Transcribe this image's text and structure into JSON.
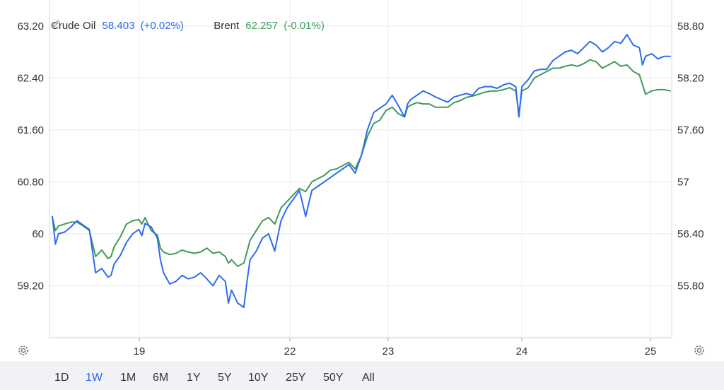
{
  "legend": {
    "series": [
      {
        "name": "Crude Oil",
        "value": "58.403",
        "change": "(+0.02%)",
        "color": "#2f6bf0"
      },
      {
        "name": "Brent",
        "value": "62.257",
        "change": "(-0.01%)",
        "color": "#3f9a5a"
      }
    ]
  },
  "icons": {
    "settings_left": "gear-icon",
    "settings_right": "gear-icon",
    "edit": "pencil-icon"
  },
  "timeframes": {
    "items": [
      "1D",
      "1W",
      "1M",
      "6M",
      "1Y",
      "5Y",
      "10Y",
      "25Y",
      "50Y",
      "All"
    ],
    "active": "1W"
  },
  "chart_data": {
    "type": "line",
    "x_ticks": [
      "19",
      "22",
      "23",
      "24",
      "25"
    ],
    "left_axis": {
      "ticks": [
        "63.20",
        "62.40",
        "61.60",
        "60.80",
        "60",
        "59.20"
      ],
      "ylim": [
        58.4,
        63.6
      ]
    },
    "right_axis": {
      "ticks": [
        "58.80",
        "58.20",
        "57.60",
        "57",
        "56.40",
        "55.80"
      ],
      "ylim": [
        55.2,
        59.1
      ]
    },
    "grid": true,
    "legend_position": "top-left",
    "series": [
      {
        "name": "Crude Oil",
        "axis": "right",
        "color": "#2f6bf0",
        "x": [
          0,
          0.005,
          0.01,
          0.02,
          0.03,
          0.04,
          0.05,
          0.06,
          0.065,
          0.07,
          0.08,
          0.09,
          0.095,
          0.1,
          0.11,
          0.12,
          0.13,
          0.14,
          0.145,
          0.15,
          0.16,
          0.17,
          0.175,
          0.18,
          0.19,
          0.2,
          0.21,
          0.22,
          0.23,
          0.24,
          0.25,
          0.26,
          0.27,
          0.28,
          0.285,
          0.29,
          0.3,
          0.31,
          0.315,
          0.32,
          0.33,
          0.34,
          0.35,
          0.36,
          0.37,
          0.38,
          0.39,
          0.4,
          0.41,
          0.42,
          0.43,
          0.44,
          0.45,
          0.46,
          0.47,
          0.48,
          0.49,
          0.5,
          0.51,
          0.52,
          0.53,
          0.54,
          0.55,
          0.56,
          0.57,
          0.575,
          0.58,
          0.59,
          0.6,
          0.61,
          0.62,
          0.63,
          0.64,
          0.65,
          0.66,
          0.67,
          0.68,
          0.69,
          0.7,
          0.71,
          0.72,
          0.73,
          0.74,
          0.75,
          0.755,
          0.76,
          0.77,
          0.78,
          0.79,
          0.8,
          0.81,
          0.82,
          0.83,
          0.84,
          0.85,
          0.86,
          0.87,
          0.88,
          0.89,
          0.9,
          0.91,
          0.92,
          0.93,
          0.94,
          0.95,
          0.955,
          0.96,
          0.97,
          0.98,
          0.99,
          1.0
        ],
        "y": [
          56.6,
          56.28,
          56.4,
          56.42,
          56.48,
          56.55,
          56.5,
          56.45,
          56.2,
          55.95,
          56.0,
          55.9,
          55.92,
          56.05,
          56.15,
          56.3,
          56.4,
          56.45,
          56.38,
          56.52,
          56.48,
          56.35,
          56.1,
          55.95,
          55.82,
          55.85,
          55.92,
          55.88,
          55.9,
          55.95,
          55.88,
          55.8,
          55.92,
          55.85,
          55.6,
          55.75,
          55.6,
          55.55,
          55.85,
          56.1,
          56.2,
          56.35,
          56.4,
          56.2,
          56.55,
          56.7,
          56.8,
          56.9,
          56.6,
          56.9,
          56.95,
          57.0,
          57.05,
          57.1,
          57.15,
          57.2,
          57.1,
          57.3,
          57.6,
          57.8,
          57.85,
          57.9,
          58.0,
          57.88,
          57.75,
          57.9,
          57.95,
          58.0,
          58.05,
          58.02,
          57.98,
          57.95,
          57.92,
          57.98,
          58.0,
          58.02,
          58.0,
          58.08,
          58.1,
          58.1,
          58.08,
          58.12,
          58.14,
          58.1,
          57.75,
          58.1,
          58.18,
          58.28,
          58.3,
          58.3,
          58.4,
          58.45,
          58.5,
          58.52,
          58.48,
          58.55,
          58.62,
          58.58,
          58.5,
          58.55,
          58.62,
          58.6,
          58.7,
          58.58,
          58.55,
          58.35,
          58.45,
          58.48,
          58.42,
          58.45,
          58.45
        ]
      },
      {
        "name": "Brent",
        "axis": "left",
        "color": "#3f9a5a",
        "x": [
          0,
          0.005,
          0.01,
          0.02,
          0.03,
          0.04,
          0.05,
          0.06,
          0.065,
          0.07,
          0.08,
          0.09,
          0.095,
          0.1,
          0.11,
          0.12,
          0.13,
          0.14,
          0.145,
          0.15,
          0.16,
          0.17,
          0.175,
          0.18,
          0.19,
          0.2,
          0.21,
          0.22,
          0.23,
          0.24,
          0.25,
          0.26,
          0.27,
          0.28,
          0.285,
          0.29,
          0.3,
          0.31,
          0.315,
          0.32,
          0.33,
          0.34,
          0.35,
          0.36,
          0.37,
          0.38,
          0.39,
          0.4,
          0.41,
          0.42,
          0.43,
          0.44,
          0.45,
          0.46,
          0.47,
          0.48,
          0.49,
          0.5,
          0.51,
          0.52,
          0.53,
          0.54,
          0.55,
          0.56,
          0.57,
          0.575,
          0.58,
          0.59,
          0.6,
          0.61,
          0.62,
          0.63,
          0.64,
          0.65,
          0.66,
          0.67,
          0.68,
          0.69,
          0.7,
          0.71,
          0.72,
          0.73,
          0.74,
          0.75,
          0.755,
          0.76,
          0.77,
          0.78,
          0.79,
          0.8,
          0.81,
          0.82,
          0.83,
          0.84,
          0.85,
          0.86,
          0.87,
          0.88,
          0.89,
          0.9,
          0.91,
          0.92,
          0.93,
          0.94,
          0.95,
          0.955,
          0.96,
          0.97,
          0.98,
          0.99,
          1.0
        ],
        "y": [
          60.25,
          60.05,
          60.12,
          60.15,
          60.18,
          60.18,
          60.12,
          60.05,
          59.85,
          59.65,
          59.75,
          59.62,
          59.65,
          59.8,
          59.95,
          60.15,
          60.2,
          60.22,
          60.15,
          60.25,
          60.05,
          59.98,
          59.78,
          59.72,
          59.68,
          59.7,
          59.75,
          59.72,
          59.7,
          59.72,
          59.78,
          59.7,
          59.72,
          59.65,
          59.55,
          59.6,
          59.5,
          59.55,
          59.72,
          59.9,
          60.05,
          60.2,
          60.25,
          60.15,
          60.4,
          60.5,
          60.6,
          60.7,
          60.65,
          60.8,
          60.85,
          60.9,
          60.98,
          61.0,
          61.05,
          61.1,
          61.0,
          61.2,
          61.5,
          61.7,
          61.75,
          61.9,
          61.95,
          61.85,
          61.8,
          61.95,
          61.98,
          62.02,
          62.0,
          62.0,
          61.95,
          61.95,
          61.95,
          62.02,
          62.05,
          62.1,
          62.12,
          62.15,
          62.18,
          62.2,
          62.2,
          62.22,
          62.25,
          62.2,
          61.85,
          62.2,
          62.25,
          62.4,
          62.45,
          62.5,
          62.55,
          62.55,
          62.58,
          62.6,
          62.58,
          62.62,
          62.68,
          62.65,
          62.55,
          62.6,
          62.65,
          62.58,
          62.6,
          62.5,
          62.45,
          62.3,
          62.15,
          62.2,
          62.22,
          62.22,
          62.2
        ]
      }
    ]
  }
}
